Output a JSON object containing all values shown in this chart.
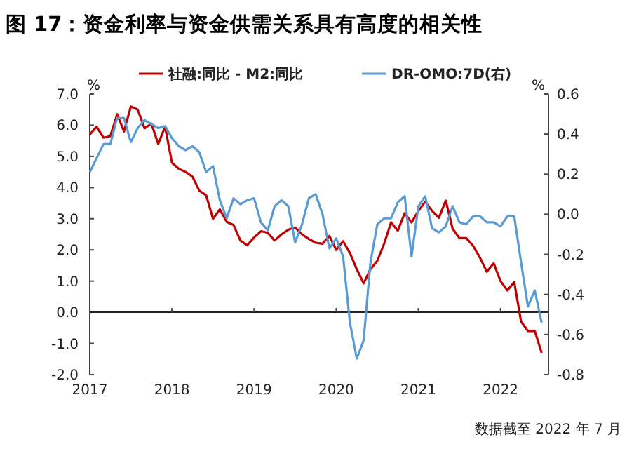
{
  "chart_data": {
    "type": "line",
    "title": "图 17：资金利率与资金供需关系具有高度的相关性",
    "ylabel": "%",
    "y2label": "%",
    "annotations": [
      "数据截至 2022 年 7 月"
    ],
    "x": [
      "2017-01",
      "2017-02",
      "2017-03",
      "2017-04",
      "2017-05",
      "2017-06",
      "2017-07",
      "2017-08",
      "2017-09",
      "2017-10",
      "2017-11",
      "2017-12",
      "2018-01",
      "2018-02",
      "2018-03",
      "2018-04",
      "2018-05",
      "2018-06",
      "2018-07",
      "2018-08",
      "2018-09",
      "2018-10",
      "2018-11",
      "2018-12",
      "2019-01",
      "2019-02",
      "2019-03",
      "2019-04",
      "2019-05",
      "2019-06",
      "2019-07",
      "2019-08",
      "2019-09",
      "2019-10",
      "2019-11",
      "2019-12",
      "2020-01",
      "2020-02",
      "2020-03",
      "2020-04",
      "2020-05",
      "2020-06",
      "2020-07",
      "2020-08",
      "2020-09",
      "2020-10",
      "2020-11",
      "2020-12",
      "2021-01",
      "2021-02",
      "2021-03",
      "2021-04",
      "2021-05",
      "2021-06",
      "2021-07",
      "2021-08",
      "2021-09",
      "2021-10",
      "2021-11",
      "2021-12",
      "2022-01",
      "2022-02",
      "2022-03",
      "2022-04",
      "2022-05",
      "2022-06",
      "2022-07"
    ],
    "series": [
      {
        "name": "社融:同比 - M2:同比",
        "color": "#c00000",
        "values": [
          5.7,
          5.95,
          5.6,
          5.65,
          6.35,
          5.8,
          6.6,
          6.5,
          5.9,
          6.05,
          5.4,
          5.95,
          4.8,
          4.6,
          4.5,
          4.35,
          3.9,
          3.75,
          3.0,
          3.3,
          2.9,
          2.8,
          2.3,
          2.15,
          2.4,
          2.6,
          2.55,
          2.3,
          2.5,
          2.65,
          2.72,
          2.5,
          2.35,
          2.23,
          2.2,
          2.45,
          2.0,
          2.28,
          1.9,
          1.38,
          0.93,
          1.38,
          1.65,
          2.2,
          2.88,
          2.62,
          3.18,
          2.88,
          3.25,
          3.55,
          3.25,
          3.03,
          3.58,
          2.68,
          2.38,
          2.38,
          2.13,
          1.75,
          1.3,
          1.57,
          1.0,
          0.7,
          0.97,
          -0.3,
          -0.6,
          -0.6,
          -1.3
        ]
      },
      {
        "name": "DR-OMO:7D(右)",
        "color": "#5b9bd5",
        "axis": "y2",
        "values": [
          0.21,
          0.28,
          0.35,
          0.35,
          0.48,
          0.48,
          0.36,
          0.43,
          0.47,
          0.45,
          0.43,
          0.44,
          0.38,
          0.34,
          0.32,
          0.34,
          0.31,
          0.21,
          0.24,
          0.07,
          -0.02,
          0.08,
          0.05,
          0.07,
          0.08,
          -0.04,
          -0.08,
          0.04,
          0.07,
          0.04,
          -0.14,
          -0.05,
          0.08,
          0.1,
          0.0,
          -0.17,
          -0.12,
          -0.21,
          -0.54,
          -0.72,
          -0.63,
          -0.24,
          -0.05,
          -0.02,
          -0.02,
          0.06,
          0.09,
          -0.21,
          0.04,
          0.09,
          -0.07,
          -0.09,
          -0.06,
          0.04,
          -0.04,
          -0.05,
          -0.01,
          -0.01,
          -0.04,
          -0.04,
          -0.06,
          -0.01,
          -0.01,
          -0.24,
          -0.46,
          -0.38,
          -0.54
        ]
      }
    ],
    "xlim": [
      "2017-01",
      "2022-08"
    ],
    "xticks": [
      "2017",
      "2018",
      "2019",
      "2020",
      "2021",
      "2022"
    ],
    "ylim": [
      -2,
      7
    ],
    "yticks": [
      {
        "value": 7,
        "label": "7.0"
      },
      {
        "value": 6,
        "label": "6.0"
      },
      {
        "value": 5,
        "label": "5.0"
      },
      {
        "value": 4,
        "label": "4.0"
      },
      {
        "value": 3,
        "label": "3.0"
      },
      {
        "value": 2,
        "label": "2.0"
      },
      {
        "value": 1,
        "label": "1.0"
      },
      {
        "value": 0,
        "label": "0.0"
      },
      {
        "value": -1,
        "label": "-1.0"
      },
      {
        "value": -2,
        "label": "-2.0"
      }
    ],
    "y2lim": [
      -0.8,
      0.6
    ],
    "y2ticks": [
      0.6,
      0.4,
      0.2,
      {
        "value": 0,
        "label": "0.0"
      },
      -0.2,
      -0.4,
      -0.6,
      -0.8
    ],
    "legend": "top",
    "marker": "none",
    "line_style": "solid"
  }
}
